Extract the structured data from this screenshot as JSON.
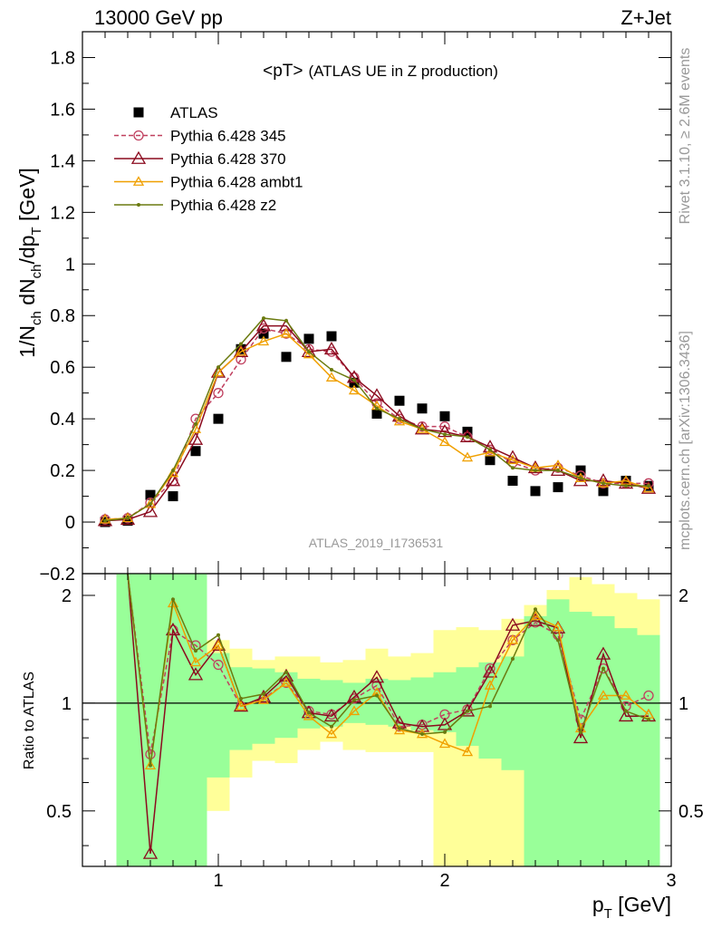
{
  "header": {
    "left": "13000 GeV pp",
    "right": "Z+Jet"
  },
  "title": "<pT> (ATLAS UE in Z production)",
  "title_main": "<pT>",
  "title_sub": "(ATLAS UE in Z production)",
  "analysis_id": "ATLAS_2019_I1736531",
  "side_label_top": "Rivet 3.1.10, ≥ 2.6M events",
  "side_label_bottom": "mcplots.cern.ch [arXiv:1306.3436]",
  "ylabel": {
    "main": "1/N",
    "sub1": "ch",
    "mid": " dN",
    "sub2": "ch",
    "mid2": "/dp",
    "sub3": "T",
    "unit": " [GeV]"
  },
  "ratio_ylabel": "Ratio to ATLAS",
  "xlabel": {
    "main": "p",
    "sub": "T",
    "unit": " [GeV]"
  },
  "colors": {
    "atlas": "#000000",
    "p345": "#c0405f",
    "p370": "#8b0a1e",
    "ambt1": "#f0a000",
    "z2": "#6b7b10",
    "band_green": "#99ff99",
    "band_yellow": "#ffff99"
  },
  "chart_data": {
    "type": "scatter",
    "x": [
      0.5,
      0.6,
      0.7,
      0.8,
      0.9,
      1.0,
      1.1,
      1.2,
      1.3,
      1.4,
      1.5,
      1.6,
      1.7,
      1.8,
      1.9,
      2.0,
      2.1,
      2.2,
      2.3,
      2.4,
      2.5,
      2.6,
      2.7,
      2.8,
      2.9
    ],
    "xlim": [
      0.4,
      3.0
    ],
    "ylim": [
      -0.2,
      1.9
    ],
    "xticks": [
      "1",
      "2",
      "3"
    ],
    "yticks": [
      "−0.2",
      "0",
      "0.2",
      "0.4",
      "0.6",
      "0.8",
      "1",
      "1.2",
      "1.4",
      "1.6",
      "1.8"
    ],
    "ratio_ylim": [
      0.35,
      2.3
    ],
    "ratio_yticks": [
      "0.5",
      "1",
      "2"
    ],
    "series": [
      {
        "name": "ATLAS",
        "values": [
          0.0,
          0.005,
          0.105,
          0.1,
          0.275,
          0.4,
          0.67,
          0.73,
          0.64,
          0.71,
          0.72,
          0.54,
          0.42,
          0.47,
          0.44,
          0.41,
          0.35,
          0.24,
          0.16,
          0.12,
          0.135,
          0.2,
          0.12,
          0.16,
          0.14
        ]
      },
      {
        "name": "Pythia 6.428 345",
        "values": [
          0.01,
          0.015,
          0.075,
          0.16,
          0.4,
          0.5,
          0.63,
          0.75,
          0.73,
          0.67,
          0.66,
          0.56,
          0.46,
          0.4,
          0.37,
          0.37,
          0.33,
          0.28,
          0.23,
          0.2,
          0.21,
          0.18,
          0.15,
          0.15,
          0.15
        ]
      },
      {
        "name": "Pythia 6.428 370",
        "values": [
          0.005,
          0.01,
          0.04,
          0.16,
          0.32,
          0.58,
          0.66,
          0.76,
          0.76,
          0.66,
          0.67,
          0.56,
          0.49,
          0.41,
          0.36,
          0.35,
          0.33,
          0.29,
          0.25,
          0.21,
          0.2,
          0.16,
          0.16,
          0.15,
          0.13
        ]
      },
      {
        "name": "Pythia 6.428 ambt1",
        "values": [
          0.01,
          0.015,
          0.07,
          0.19,
          0.36,
          0.58,
          0.66,
          0.7,
          0.73,
          0.65,
          0.56,
          0.51,
          0.45,
          0.39,
          0.36,
          0.31,
          0.25,
          0.27,
          0.24,
          0.21,
          0.22,
          0.17,
          0.15,
          0.16,
          0.13
        ]
      },
      {
        "name": "Pythia 6.428 z2",
        "values": [
          0.005,
          0.015,
          0.07,
          0.2,
          0.38,
          0.6,
          0.69,
          0.79,
          0.78,
          0.66,
          0.59,
          0.55,
          0.44,
          0.4,
          0.36,
          0.34,
          0.33,
          0.28,
          0.21,
          0.2,
          0.2,
          0.17,
          0.15,
          0.14,
          0.14
        ]
      }
    ],
    "ratio_series": [
      {
        "name": "Pythia 6.428 345",
        "values": [
          null,
          null,
          0.72,
          1.6,
          1.45,
          1.28,
          0.98,
          1.03,
          1.14,
          0.95,
          0.93,
          1.03,
          1.12,
          0.86,
          0.87,
          0.93,
          0.96,
          1.25,
          1.5,
          1.68,
          1.55,
          0.9,
          1.25,
          0.98,
          1.05
        ]
      },
      {
        "name": "Pythia 6.428 370",
        "values": [
          null,
          null,
          0.38,
          1.6,
          1.2,
          1.45,
          0.98,
          1.04,
          1.19,
          0.94,
          0.92,
          1.04,
          1.18,
          0.88,
          0.86,
          0.87,
          0.95,
          1.22,
          1.65,
          1.7,
          1.62,
          0.8,
          1.37,
          0.92,
          0.92
        ]
      },
      {
        "name": "Pythia 6.428 ambt1",
        "values": [
          null,
          null,
          0.67,
          1.9,
          1.3,
          1.45,
          0.98,
          1.02,
          1.14,
          0.92,
          0.82,
          0.95,
          1.07,
          0.84,
          0.82,
          0.77,
          0.73,
          1.12,
          1.5,
          1.75,
          1.63,
          0.85,
          1.05,
          1.05,
          0.93
        ]
      },
      {
        "name": "Pythia 6.428 z2",
        "values": [
          null,
          null,
          0.67,
          1.95,
          1.4,
          1.55,
          1.03,
          1.06,
          1.22,
          0.94,
          0.86,
          1.02,
          1.05,
          0.85,
          0.82,
          0.83,
          0.95,
          0.98,
          1.33,
          1.83,
          1.5,
          0.83,
          1.25,
          0.95,
          0.9
        ]
      }
    ],
    "ratio_bands": [
      {
        "x0": 0.55,
        "x1": 0.65,
        "green": [
          0.35,
          2.3
        ],
        "yellow": [
          0.35,
          2.3
        ]
      },
      {
        "x0": 0.65,
        "x1": 0.75,
        "green": [
          0.35,
          2.3
        ],
        "yellow": [
          0.35,
          2.3
        ]
      },
      {
        "x0": 0.75,
        "x1": 0.85,
        "green": [
          0.35,
          2.3
        ],
        "yellow": [
          0.35,
          2.3
        ]
      },
      {
        "x0": 0.85,
        "x1": 0.95,
        "green": [
          0.35,
          2.3
        ],
        "yellow": [
          0.35,
          2.3
        ]
      },
      {
        "x0": 0.95,
        "x1": 1.05,
        "green": [
          0.62,
          1.38
        ],
        "yellow": [
          0.5,
          1.5
        ]
      },
      {
        "x0": 1.05,
        "x1": 1.15,
        "green": [
          0.74,
          1.26
        ],
        "yellow": [
          0.62,
          1.42
        ]
      },
      {
        "x0": 1.15,
        "x1": 1.25,
        "green": [
          0.77,
          1.25
        ],
        "yellow": [
          0.69,
          1.32
        ]
      },
      {
        "x0": 1.25,
        "x1": 1.35,
        "green": [
          0.8,
          1.22
        ],
        "yellow": [
          0.68,
          1.35
        ]
      },
      {
        "x0": 1.35,
        "x1": 1.45,
        "green": [
          0.85,
          1.17
        ],
        "yellow": [
          0.74,
          1.35
        ]
      },
      {
        "x0": 1.45,
        "x1": 1.55,
        "green": [
          0.86,
          1.16
        ],
        "yellow": [
          0.78,
          1.3
        ]
      },
      {
        "x0": 1.55,
        "x1": 1.65,
        "green": [
          0.88,
          1.14
        ],
        "yellow": [
          0.74,
          1.32
        ]
      },
      {
        "x0": 1.65,
        "x1": 1.75,
        "green": [
          0.87,
          1.17
        ],
        "yellow": [
          0.73,
          1.42
        ]
      },
      {
        "x0": 1.75,
        "x1": 1.85,
        "green": [
          0.86,
          1.16
        ],
        "yellow": [
          0.73,
          1.35
        ]
      },
      {
        "x0": 1.85,
        "x1": 1.95,
        "green": [
          0.84,
          1.18
        ],
        "yellow": [
          0.73,
          1.38
        ]
      },
      {
        "x0": 1.95,
        "x1": 2.05,
        "green": [
          0.83,
          1.22
        ],
        "yellow": [
          0.35,
          1.6
        ]
      },
      {
        "x0": 2.05,
        "x1": 2.15,
        "green": [
          0.76,
          1.26
        ],
        "yellow": [
          0.35,
          1.63
        ]
      },
      {
        "x0": 2.15,
        "x1": 2.25,
        "green": [
          0.7,
          1.3
        ],
        "yellow": [
          0.35,
          1.6
        ]
      },
      {
        "x0": 2.25,
        "x1": 2.35,
        "green": [
          0.65,
          1.35
        ],
        "yellow": [
          0.35,
          1.72
        ]
      },
      {
        "x0": 2.35,
        "x1": 2.45,
        "green": [
          0.35,
          1.75
        ],
        "yellow": [
          0.35,
          1.88
        ]
      },
      {
        "x0": 2.45,
        "x1": 2.55,
        "green": [
          0.35,
          1.95
        ],
        "yellow": [
          0.35,
          2.07
        ]
      },
      {
        "x0": 2.55,
        "x1": 2.65,
        "green": [
          0.35,
          1.8
        ],
        "yellow": [
          0.35,
          2.25
        ]
      },
      {
        "x0": 2.65,
        "x1": 2.75,
        "green": [
          0.35,
          1.75
        ],
        "yellow": [
          0.35,
          2.15
        ]
      },
      {
        "x0": 2.75,
        "x1": 2.85,
        "green": [
          0.35,
          1.62
        ],
        "yellow": [
          0.35,
          2.03
        ]
      },
      {
        "x0": 2.85,
        "x1": 2.95,
        "green": [
          0.35,
          1.55
        ],
        "yellow": [
          0.35,
          1.95
        ]
      }
    ],
    "legend_position": "top-left",
    "grid": false
  }
}
